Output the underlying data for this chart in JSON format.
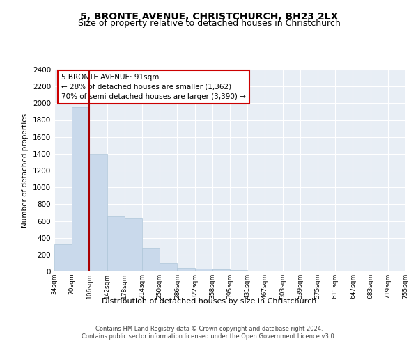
{
  "title": "5, BRONTE AVENUE, CHRISTCHURCH, BH23 2LX",
  "subtitle": "Size of property relative to detached houses in Christchurch",
  "xlabel": "Distribution of detached houses by size in Christchurch",
  "ylabel": "Number of detached properties",
  "bar_values": [
    320,
    1950,
    1400,
    650,
    640,
    270,
    100,
    45,
    30,
    25,
    15,
    0,
    0,
    0,
    0,
    0,
    0,
    0,
    0,
    0
  ],
  "x_labels": [
    "34sqm",
    "70sqm",
    "106sqm",
    "142sqm",
    "178sqm",
    "214sqm",
    "250sqm",
    "286sqm",
    "322sqm",
    "358sqm",
    "395sqm",
    "431sqm",
    "467sqm",
    "503sqm",
    "539sqm",
    "575sqm",
    "611sqm",
    "647sqm",
    "683sqm",
    "719sqm",
    "755sqm"
  ],
  "bar_color": "#c9d9eb",
  "bar_edge_color": "#aec6d9",
  "vline_x": 1.5,
  "vline_color": "#aa0000",
  "annotation_title": "5 BRONTE AVENUE: 91sqm",
  "annotation_line1": "← 28% of detached houses are smaller (1,362)",
  "annotation_line2": "70% of semi-detached houses are larger (3,390) →",
  "annotation_box_color": "#cc0000",
  "ylim": [
    0,
    2400
  ],
  "yticks": [
    0,
    200,
    400,
    600,
    800,
    1000,
    1200,
    1400,
    1600,
    1800,
    2000,
    2200,
    2400
  ],
  "plot_bg_color": "#e8eef5",
  "footer": "Contains HM Land Registry data © Crown copyright and database right 2024.\nContains public sector information licensed under the Open Government Licence v3.0.",
  "title_fontsize": 10,
  "subtitle_fontsize": 9
}
